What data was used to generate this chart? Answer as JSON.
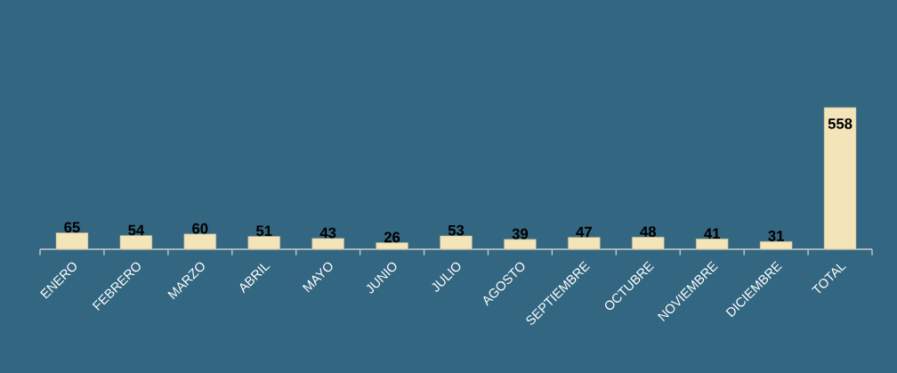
{
  "chart_data": {
    "type": "bar",
    "categories": [
      "ENERO",
      "FEBRERO",
      "MARZO",
      "ABRIL",
      "MAYO",
      "JUNIO",
      "JULIO",
      "AGOSTO",
      "SEPTIEMBRE",
      "OCTUBRE",
      "NOVIEMBRE",
      "DICIEMBRE",
      "TOTAL"
    ],
    "values": [
      65,
      54,
      60,
      51,
      43,
      26,
      53,
      39,
      47,
      48,
      41,
      31,
      558
    ],
    "color": "#f3e4ba",
    "data_labels": true
  }
}
